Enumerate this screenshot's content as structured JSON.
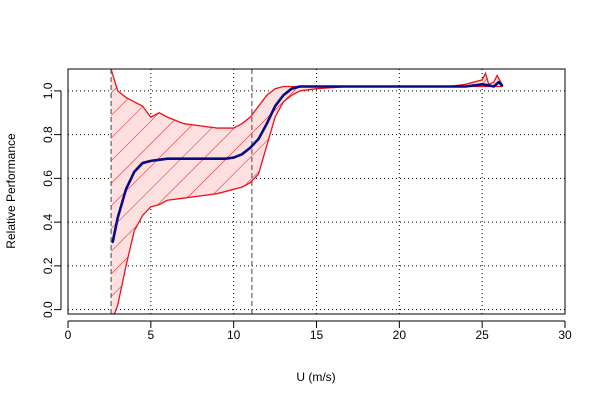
{
  "colors": {
    "band_fill": "#ffe0e0",
    "band_edge": "#e8141a",
    "hatch": "#e8141a",
    "mean_line": "#0a0a82",
    "grid": "#000000",
    "vline": "#555555"
  },
  "chart_data": {
    "type": "line",
    "title": "",
    "xlabel": "U (m/s)",
    "ylabel": "Relative Performance",
    "xlim": [
      0,
      30
    ],
    "ylim": [
      -0.02,
      1.1
    ],
    "x_ticks": [
      "0",
      "5",
      "10",
      "15",
      "20",
      "25",
      "30"
    ],
    "y_ticks": [
      "0.0",
      "0.2",
      "0.4",
      "0.6",
      "0.8",
      "1.0"
    ],
    "grid": true,
    "grid_style": "dotted",
    "legend": "none",
    "vertical_lines": [
      2.6,
      11.1
    ],
    "series": [
      {
        "role": "mean",
        "points": [
          [
            2.7,
            0.31
          ],
          [
            3.0,
            0.42
          ],
          [
            3.5,
            0.55
          ],
          [
            4.0,
            0.63
          ],
          [
            4.5,
            0.67
          ],
          [
            5.0,
            0.68
          ],
          [
            5.5,
            0.685
          ],
          [
            6.0,
            0.69
          ],
          [
            7.0,
            0.69
          ],
          [
            8.0,
            0.69
          ],
          [
            9.0,
            0.69
          ],
          [
            9.5,
            0.69
          ],
          [
            10.0,
            0.695
          ],
          [
            10.5,
            0.71
          ],
          [
            11.0,
            0.74
          ],
          [
            11.5,
            0.78
          ],
          [
            12.0,
            0.85
          ],
          [
            12.5,
            0.93
          ],
          [
            13.0,
            0.98
          ],
          [
            13.5,
            1.01
          ],
          [
            14.0,
            1.02
          ],
          [
            15.0,
            1.02
          ],
          [
            17.0,
            1.02
          ],
          [
            20.0,
            1.02
          ],
          [
            24.0,
            1.02
          ],
          [
            25.0,
            1.03
          ],
          [
            25.4,
            1.025
          ],
          [
            25.7,
            1.02
          ],
          [
            26.0,
            1.04
          ],
          [
            26.2,
            1.025
          ]
        ]
      },
      {
        "role": "upper",
        "points": [
          [
            2.6,
            1.1
          ],
          [
            2.8,
            1.05
          ],
          [
            3.0,
            1.0
          ],
          [
            3.5,
            0.97
          ],
          [
            4.0,
            0.95
          ],
          [
            4.5,
            0.93
          ],
          [
            5.0,
            0.88
          ],
          [
            5.5,
            0.9
          ],
          [
            6.0,
            0.88
          ],
          [
            7.0,
            0.85
          ],
          [
            8.0,
            0.84
          ],
          [
            9.0,
            0.83
          ],
          [
            10.0,
            0.83
          ],
          [
            10.5,
            0.85
          ],
          [
            11.0,
            0.88
          ],
          [
            11.5,
            0.93
          ],
          [
            12.0,
            0.98
          ],
          [
            12.5,
            1.01
          ],
          [
            13.0,
            1.02
          ],
          [
            15.0,
            1.02
          ],
          [
            20.0,
            1.02
          ],
          [
            23.0,
            1.02
          ],
          [
            24.0,
            1.03
          ],
          [
            25.0,
            1.05
          ],
          [
            25.2,
            1.08
          ],
          [
            25.4,
            1.03
          ],
          [
            25.7,
            1.04
          ],
          [
            25.9,
            1.07
          ],
          [
            26.2,
            1.03
          ]
        ]
      },
      {
        "role": "lower",
        "points": [
          [
            2.6,
            -0.02
          ],
          [
            2.8,
            -0.02
          ],
          [
            3.0,
            0.02
          ],
          [
            3.5,
            0.2
          ],
          [
            4.0,
            0.36
          ],
          [
            4.5,
            0.43
          ],
          [
            5.0,
            0.47
          ],
          [
            5.5,
            0.48
          ],
          [
            6.0,
            0.5
          ],
          [
            7.0,
            0.51
          ],
          [
            8.0,
            0.52
          ],
          [
            9.0,
            0.53
          ],
          [
            10.0,
            0.55
          ],
          [
            10.5,
            0.56
          ],
          [
            11.0,
            0.58
          ],
          [
            11.5,
            0.62
          ],
          [
            12.0,
            0.75
          ],
          [
            12.5,
            0.88
          ],
          [
            13.0,
            0.95
          ],
          [
            13.5,
            0.98
          ],
          [
            14.0,
            1.0
          ],
          [
            15.0,
            1.01
          ],
          [
            17.0,
            1.02
          ],
          [
            20.0,
            1.02
          ],
          [
            25.0,
            1.02
          ],
          [
            26.2,
            1.02
          ]
        ]
      }
    ]
  }
}
